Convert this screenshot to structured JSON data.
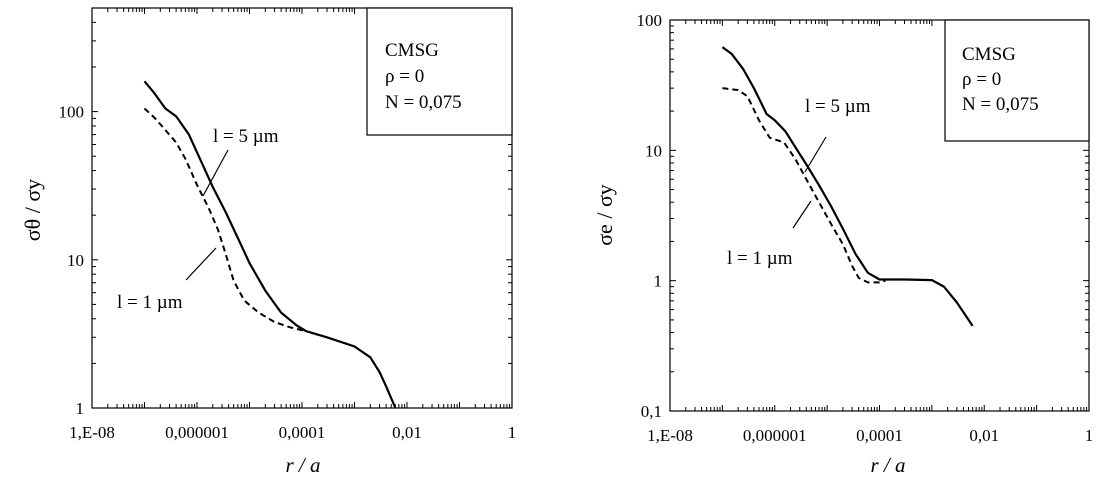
{
  "chart_data": [
    {
      "type": "line",
      "xscale": "log",
      "yscale": "log",
      "xlabel": "r / a",
      "ylabel": "σθ / σy",
      "xlim": [
        1e-08,
        1
      ],
      "ylim": [
        1,
        500
      ],
      "x_tick_values": [
        1e-08,
        1e-06,
        0.0001,
        0.01,
        1
      ],
      "x_tick_labels": [
        "1,E-08",
        "0,000001",
        "0,0001",
        "0,01",
        "1"
      ],
      "y_tick_values": [
        1,
        10,
        100
      ],
      "y_tick_labels": [
        "1",
        "10",
        "100"
      ],
      "legend": {
        "placement": "top-right",
        "lines": [
          "CMSG",
          "ρ = 0",
          "N = 0,075"
        ]
      },
      "series": [
        {
          "name": "l = 5 µm",
          "style": "solid",
          "points": [
            [
              1e-07,
              160
            ],
            [
              1.5e-07,
              135
            ],
            [
              2.5e-07,
              105
            ],
            [
              4e-07,
              93
            ],
            [
              7e-07,
              70
            ],
            [
              1.2e-06,
              46
            ],
            [
              2e-06,
              31
            ],
            [
              3.5e-06,
              21
            ],
            [
              6e-06,
              14
            ],
            [
              1e-05,
              9.5
            ],
            [
              2e-05,
              6.2
            ],
            [
              4e-05,
              4.4
            ],
            [
              8e-05,
              3.6
            ],
            [
              0.00012,
              3.3
            ],
            [
              0.0003,
              3.0
            ],
            [
              0.001,
              2.6
            ],
            [
              0.002,
              2.2
            ],
            [
              0.003,
              1.75
            ],
            [
              0.004,
              1.4
            ],
            [
              0.006,
              1.0
            ]
          ]
        },
        {
          "name": "l = 1 µm",
          "style": "dashed",
          "points": [
            [
              1e-07,
              105
            ],
            [
              1.6e-07,
              90
            ],
            [
              2.5e-07,
              75
            ],
            [
              4e-07,
              62
            ],
            [
              6e-07,
              48
            ],
            [
              1e-06,
              32
            ],
            [
              1.7e-06,
              22
            ],
            [
              2.5e-06,
              16
            ],
            [
              3.5e-06,
              11
            ],
            [
              5e-06,
              7.2
            ],
            [
              8e-06,
              5.3
            ],
            [
              1.5e-05,
              4.4
            ],
            [
              3e-05,
              3.8
            ],
            [
              6e-05,
              3.5
            ],
            [
              0.00012,
              3.3
            ]
          ]
        }
      ],
      "annotations": [
        "l = 5 µm",
        "l = 1 µm"
      ]
    },
    {
      "type": "line",
      "xscale": "log",
      "yscale": "log",
      "xlabel": "r / a",
      "ylabel": "σe / σy",
      "xlim": [
        1e-08,
        1
      ],
      "ylim": [
        0.1,
        100
      ],
      "x_tick_values": [
        1e-08,
        1e-06,
        0.0001,
        0.01,
        1
      ],
      "x_tick_labels": [
        "1,E-08",
        "0,000001",
        "0,0001",
        "0,01",
        "1"
      ],
      "y_tick_values": [
        0.1,
        1,
        10,
        100
      ],
      "y_tick_labels": [
        "0,1",
        "1",
        "10",
        "100"
      ],
      "legend": {
        "placement": "top-right",
        "lines": [
          "CMSG",
          "ρ = 0",
          "N = 0,075"
        ]
      },
      "series": [
        {
          "name": "l = 5 µm",
          "style": "solid",
          "points": [
            [
              1e-07,
              62
            ],
            [
              1.5e-07,
              55
            ],
            [
              2.5e-07,
              42
            ],
            [
              4e-07,
              30
            ],
            [
              7e-07,
              19
            ],
            [
              1e-06,
              17
            ],
            [
              1.6e-06,
              14
            ],
            [
              2.5e-06,
              10.5
            ],
            [
              4e-06,
              7.8
            ],
            [
              7e-06,
              5.4
            ],
            [
              1.2e-05,
              3.7
            ],
            [
              2e-05,
              2.5
            ],
            [
              3.5e-05,
              1.6
            ],
            [
              6e-05,
              1.15
            ],
            [
              0.0001,
              1.02
            ],
            [
              0.0003,
              1.02
            ],
            [
              0.001,
              1.01
            ],
            [
              0.0017,
              0.9
            ],
            [
              0.003,
              0.68
            ],
            [
              0.006,
              0.45
            ]
          ]
        },
        {
          "name": "l = 1 µm",
          "style": "dashed",
          "points": [
            [
              1e-07,
              30
            ],
            [
              2e-07,
              29
            ],
            [
              3e-07,
              26
            ],
            [
              5e-07,
              17
            ],
            [
              8e-07,
              12.5
            ],
            [
              1.5e-06,
              11.5
            ],
            [
              2.5e-06,
              8.5
            ],
            [
              4e-06,
              6.0
            ],
            [
              7e-06,
              4.0
            ],
            [
              1.2e-05,
              2.7
            ],
            [
              2e-05,
              1.9
            ],
            [
              3e-05,
              1.3
            ],
            [
              4e-05,
              1.05
            ],
            [
              6e-05,
              0.97
            ],
            [
              0.0001,
              0.97
            ],
            [
              0.00013,
              1.0
            ]
          ]
        }
      ],
      "annotations": [
        "l = 5 µm",
        "l = 1 µm"
      ]
    }
  ]
}
